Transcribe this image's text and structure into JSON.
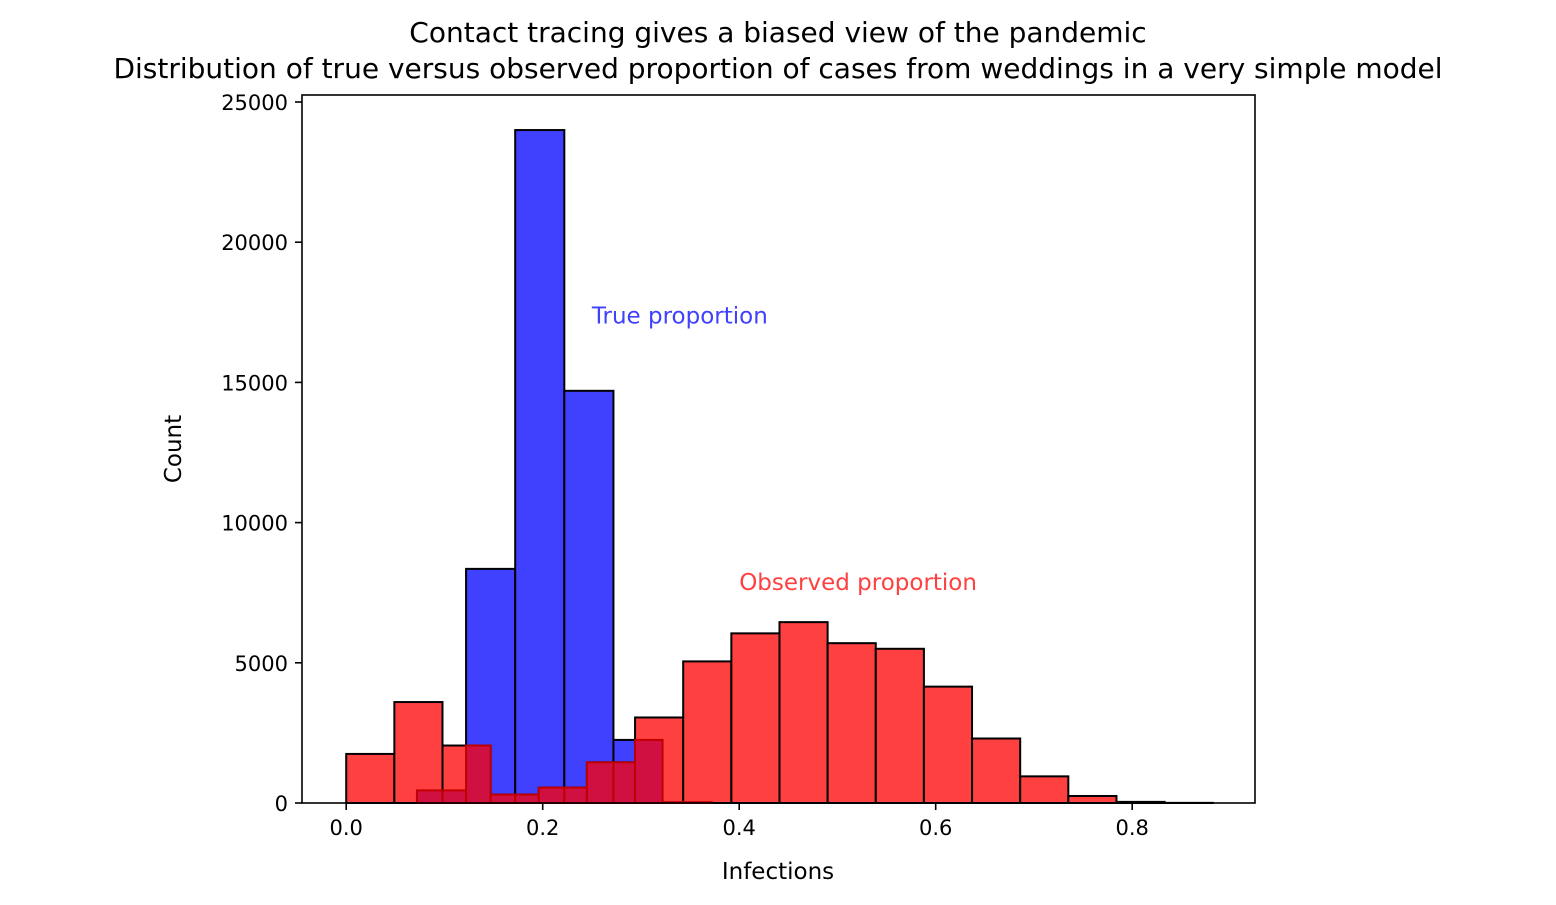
{
  "chart_data": {
    "type": "histogram",
    "title": "Contact tracing gives a biased view of the pandemic",
    "subtitle": "Distribution of true versus observed proportion of cases from weddings in a very simple model",
    "xlabel": "Infections",
    "ylabel": "Count",
    "xlim": [
      -0.045,
      0.925
    ],
    "ylim": [
      0,
      25250
    ],
    "x_ticks": [
      0.0,
      0.2,
      0.4,
      0.6,
      0.8
    ],
    "x_tick_labels": [
      "0.0",
      "0.2",
      "0.4",
      "0.6",
      "0.8"
    ],
    "y_ticks": [
      0,
      5000,
      10000,
      15000,
      20000,
      25000
    ],
    "y_tick_labels": [
      "0",
      "5000",
      "10000",
      "15000",
      "20000",
      "25000"
    ],
    "grid": false,
    "annotations": [
      {
        "text": "True proportion",
        "x": 0.25,
        "y": 17100,
        "color": "#4040ff"
      },
      {
        "text": "Observed proportion",
        "x": 0.4,
        "y": 7600,
        "color": "#ff4040"
      }
    ],
    "series": [
      {
        "color": "#4040ff",
        "edgecolor": "#000000",
        "bin_edges": [
          0.072,
          0.122,
          0.172,
          0.222,
          0.272,
          0.322,
          0.372
        ],
        "counts": [
          450,
          8350,
          24000,
          14700,
          2250,
          30
        ]
      },
      {
        "color": "#ff4040",
        "edgecolor": "#000000",
        "bin_edges": [
          0.0,
          0.049,
          0.098,
          0.147,
          0.196,
          0.245,
          0.294,
          0.343,
          0.392,
          0.441,
          0.49,
          0.539,
          0.588,
          0.637,
          0.686,
          0.735,
          0.784,
          0.833,
          0.882
        ],
        "counts": [
          1750,
          3600,
          2050,
          300,
          550,
          1450,
          3050,
          5050,
          6050,
          6450,
          5700,
          5500,
          4150,
          2300,
          950,
          250,
          40,
          5
        ]
      }
    ]
  }
}
